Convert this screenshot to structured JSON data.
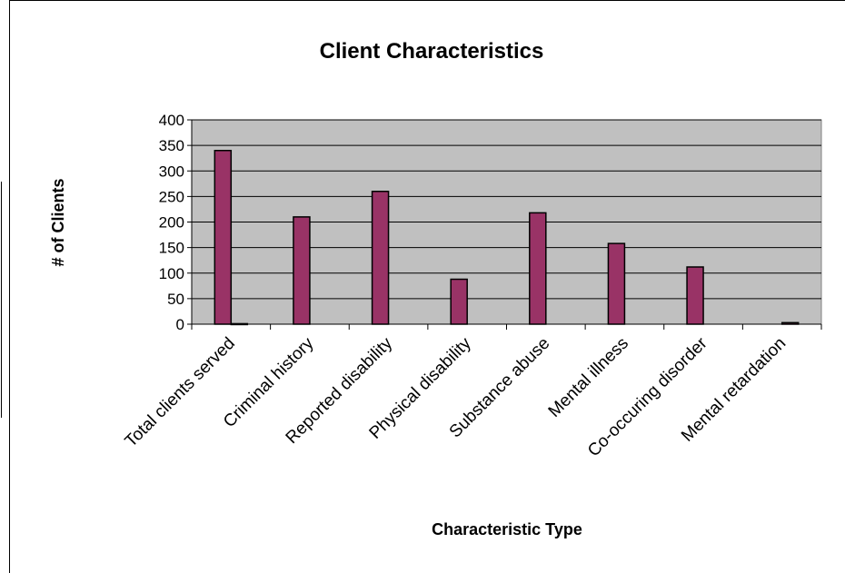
{
  "chart_data": {
    "type": "bar",
    "title": "Client Characteristics",
    "xlabel": "Characteristic Type",
    "ylabel": "# of Clients",
    "categories": [
      "Total clients served",
      "Criminal history",
      "Reported disability",
      "Physical disability",
      "Substance abuse",
      "Mental illness",
      "Co-occuring disorder",
      "Mental retardation"
    ],
    "series": [
      {
        "values": [
          340,
          210,
          260,
          88,
          218,
          158,
          112,
          0
        ]
      },
      {
        "values": [
          1,
          0,
          0,
          0,
          0,
          0,
          0,
          3
        ]
      }
    ],
    "ylim": [
      0,
      400
    ],
    "yticks": [
      0,
      50,
      100,
      150,
      200,
      250,
      300,
      350,
      400
    ],
    "grid": true,
    "legend": "none",
    "colors": {
      "bar": "#993366",
      "bar_stroke": "#000000",
      "plot_bg": "#c0c0c0",
      "grid": "#000000"
    }
  }
}
